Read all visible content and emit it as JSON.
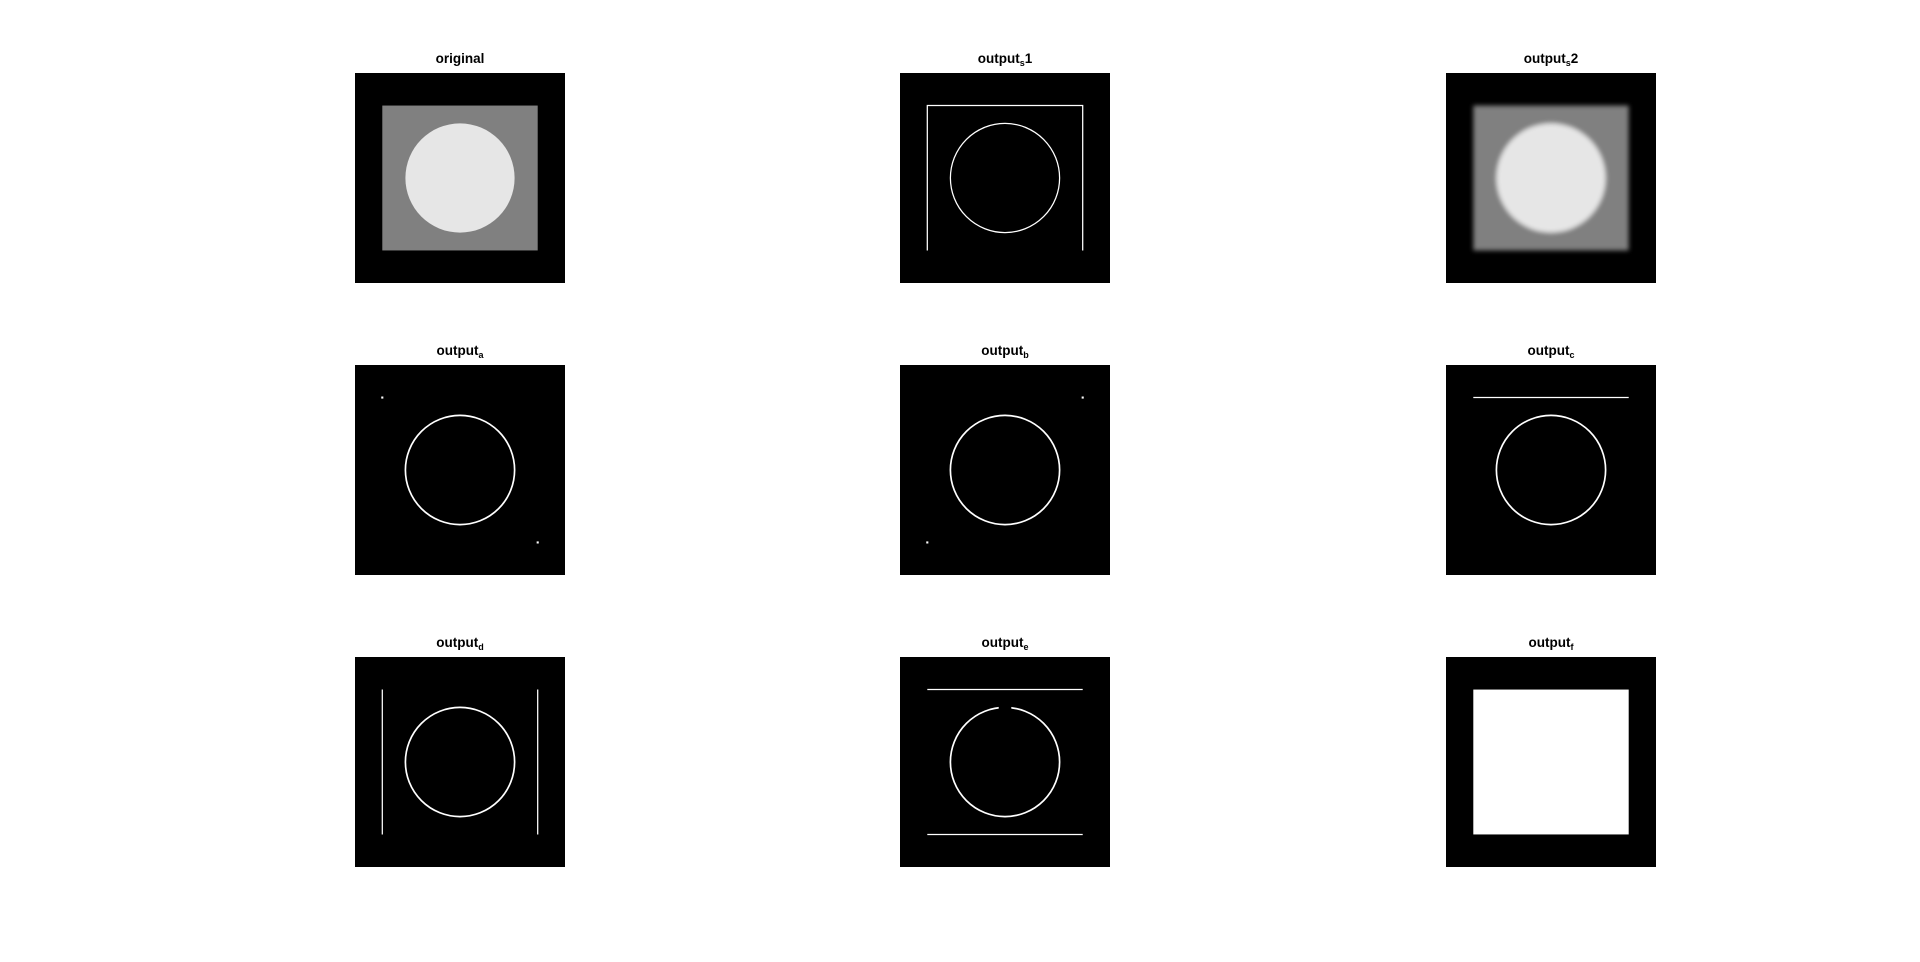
{
  "panels": [
    {
      "id": "original",
      "title_main": "original",
      "title_sub": "",
      "title_suffix": ""
    },
    {
      "id": "output_s1",
      "title_main": "output",
      "title_sub": "s",
      "title_suffix": "1"
    },
    {
      "id": "output_s2",
      "title_main": "output",
      "title_sub": "s",
      "title_suffix": "2"
    },
    {
      "id": "output_a",
      "title_main": "output",
      "title_sub": "a",
      "title_suffix": ""
    },
    {
      "id": "output_b",
      "title_main": "output",
      "title_sub": "b",
      "title_suffix": ""
    },
    {
      "id": "output_c",
      "title_main": "output",
      "title_sub": "c",
      "title_suffix": ""
    },
    {
      "id": "output_d",
      "title_main": "output",
      "title_sub": "d",
      "title_suffix": ""
    },
    {
      "id": "output_e",
      "title_main": "output",
      "title_sub": "e",
      "title_suffix": ""
    },
    {
      "id": "output_f",
      "title_main": "output",
      "title_sub": "f",
      "title_suffix": ""
    }
  ],
  "colors": {
    "background": "#000000",
    "edge": "#ffffff",
    "square_gray": "#808080",
    "disk_light": "#e6e6e6"
  }
}
